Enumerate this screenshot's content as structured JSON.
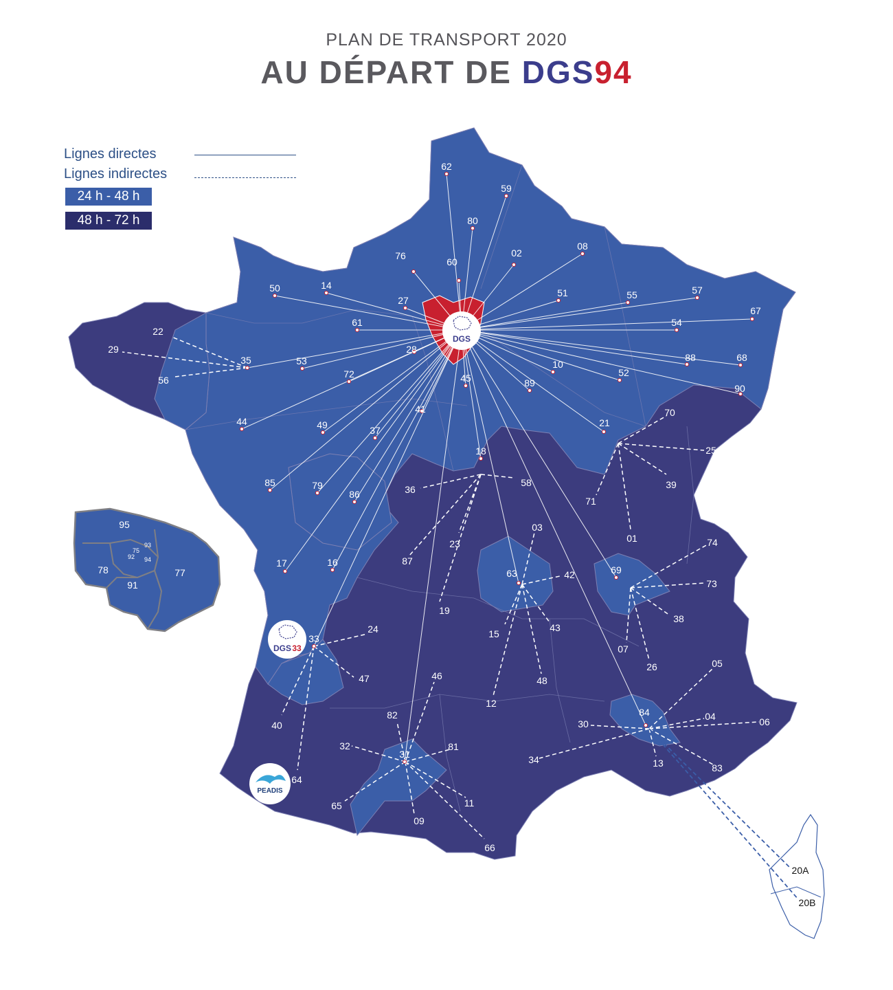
{
  "header": {
    "subtitle": "PLAN DE TRANSPORT 2020",
    "title_prefix": "AU DÉPART DE ",
    "title_brand_1": "DGS",
    "title_brand_2": "94"
  },
  "legend": {
    "direct_label": "Lignes directes",
    "indirect_label": "Lignes indirectes",
    "zone_1_label": "24 h - 48 h",
    "zone_2_label": "48 h - 72 h"
  },
  "colors": {
    "zone_24_48": "#3b5ea8",
    "zone_48_72": "#3c3c7e",
    "depot_94": "#c8202f",
    "brand_blue": "#3b3d8c",
    "brand_red": "#c8202f",
    "corsica": "#ffffff"
  },
  "hubs": {
    "dgs94_logo": "DGS",
    "dgs33_logo_prefix": "DGS",
    "dgs33_logo_suffix": "33",
    "peadis_logo": "PEADIS"
  },
  "origin": "94",
  "direct_departments": [
    "62",
    "59",
    "80",
    "76",
    "60",
    "02",
    "08",
    "50",
    "14",
    "27",
    "51",
    "55",
    "57",
    "61",
    "54",
    "67",
    "22",
    "35",
    "28",
    "88",
    "68",
    "53",
    "10",
    "52",
    "72",
    "45",
    "89",
    "90",
    "44",
    "41",
    "21",
    "49",
    "37",
    "18",
    "85",
    "79",
    "86",
    "17",
    "16",
    "36",
    "58",
    "63",
    "69",
    "33",
    "31",
    "84"
  ],
  "relay_groups": [
    {
      "hub": "35",
      "departments": [
        "22",
        "29",
        "56"
      ]
    },
    {
      "hub": "21",
      "departments": [
        "70",
        "25",
        "39",
        "71",
        "01"
      ]
    },
    {
      "hub": "18",
      "departments": [
        "36",
        "58",
        "23",
        "87",
        "19"
      ]
    },
    {
      "hub": "63",
      "departments": [
        "03",
        "42",
        "43",
        "48",
        "15",
        "12"
      ]
    },
    {
      "hub": "69",
      "departments": [
        "74",
        "73",
        "38",
        "26",
        "07"
      ]
    },
    {
      "hub": "33",
      "departments": [
        "24",
        "47",
        "40",
        "64"
      ]
    },
    {
      "hub": "31",
      "departments": [
        "46",
        "82",
        "81",
        "32",
        "65",
        "09",
        "11",
        "66"
      ]
    },
    {
      "hub": "84",
      "departments": [
        "05",
        "04",
        "06",
        "30",
        "34",
        "13",
        "83",
        "20A",
        "20B"
      ]
    }
  ],
  "idf_inset": {
    "departments": [
      "95",
      "93",
      "75",
      "92",
      "94",
      "78",
      "91",
      "77"
    ]
  }
}
